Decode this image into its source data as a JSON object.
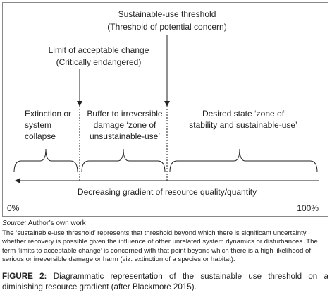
{
  "diagram": {
    "thresholds": [
      {
        "label": "Sustainable-use threshold",
        "sublabel": "(Threshold of potential concern)"
      },
      {
        "label": "Limit of acceptable change",
        "sublabel": "(Critically endangered)"
      }
    ],
    "zones": [
      {
        "lines": [
          "Extinction or",
          "system",
          "collapse"
        ]
      },
      {
        "lines": [
          "Buffer to irreversible",
          "damage ‘zone of",
          "unsustainable-use’"
        ]
      },
      {
        "lines": [
          "Desired state ‘zone of",
          "stability and sustainable-use’"
        ]
      }
    ],
    "axis_label": "Decreasing gradient of resource quality/quantity",
    "axis_start": "0%",
    "axis_end": "100%"
  },
  "source": {
    "label": "Source:",
    "text": "Author’s own work"
  },
  "note": "The ‘sustainable-use threshold’ represents that threshold beyond which there is significant uncertainty whether recovery is possible given the influence of other unrelated system dynamics or disturbances. The term ‘limits to acceptable change’ is concerned with that point beyond which there is a high likelihood of serious or irreversible damage or harm (viz. extinction of a species or habitat).",
  "caption": {
    "label": "FIGURE 2:",
    "text": "Diagrammatic representation of the sustainable use threshold on a diminishing resource gradient (after Blackmore 2015)."
  }
}
